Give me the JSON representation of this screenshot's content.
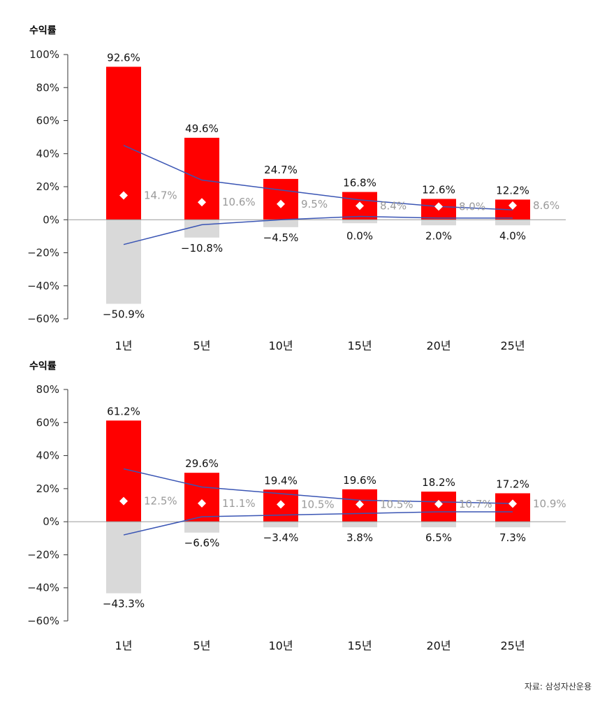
{
  "source": "자료: 삼성자산운용",
  "colors": {
    "max": "#ff0000",
    "min": "#d9d9d9",
    "avg_marker": "#ffffff",
    "line": "#3a55b4",
    "axis": "#333333",
    "avg_label": "#9a9a9a"
  },
  "chart_data": [
    {
      "type": "bar",
      "ylabel": "수익률",
      "yticks": [
        "100%",
        "80%",
        "60%",
        "40%",
        "20%",
        "0%",
        "−20%",
        "−40%",
        "−60%"
      ],
      "ylim": [
        -60,
        100
      ],
      "categories": [
        "1년",
        "5년",
        "10년",
        "15년",
        "20년",
        "25년"
      ],
      "series": [
        {
          "name": "max",
          "values": [
            92.6,
            49.6,
            24.7,
            16.8,
            12.6,
            12.2
          ],
          "labels": [
            "92.6%",
            "49.6%",
            "24.7%",
            "16.8%",
            "12.6%",
            "12.2%"
          ]
        },
        {
          "name": "min",
          "values": [
            -50.9,
            -10.8,
            -4.5,
            0.0,
            2.0,
            4.0
          ],
          "labels": [
            "−50.9%",
            "−10.8%",
            "−4.5%",
            "0.0%",
            "2.0%",
            "4.0%"
          ]
        },
        {
          "name": "avg",
          "values": [
            14.7,
            10.6,
            9.5,
            8.4,
            8.0,
            8.6
          ],
          "labels": [
            "14.7%",
            "10.6%",
            "9.5%",
            "8.4%",
            "8.0%",
            "8.6%"
          ]
        }
      ],
      "upper_line": [
        45,
        24,
        18,
        12,
        8,
        6
      ],
      "lower_line": [
        -15,
        -3,
        0,
        2,
        1,
        1
      ]
    },
    {
      "type": "bar",
      "ylabel": "수익률",
      "yticks": [
        "80%",
        "60%",
        "40%",
        "20%",
        "0%",
        "−20%",
        "−40%",
        "−60%"
      ],
      "ylim": [
        -60,
        80
      ],
      "categories": [
        "1년",
        "5년",
        "10년",
        "15년",
        "20년",
        "25년"
      ],
      "series": [
        {
          "name": "max",
          "values": [
            61.2,
            29.6,
            19.4,
            19.6,
            18.2,
            17.2
          ],
          "labels": [
            "61.2%",
            "29.6%",
            "19.4%",
            "19.6%",
            "18.2%",
            "17.2%"
          ]
        },
        {
          "name": "min",
          "values": [
            -43.3,
            -6.6,
            -3.4,
            3.8,
            6.5,
            7.3
          ],
          "labels": [
            "−43.3%",
            "−6.6%",
            "−3.4%",
            "3.8%",
            "6.5%",
            "7.3%"
          ]
        },
        {
          "name": "avg",
          "values": [
            12.5,
            11.1,
            10.5,
            10.5,
            10.7,
            10.9
          ],
          "labels": [
            "12.5%",
            "11.1%",
            "10.5%",
            "10.5%",
            "10.7%",
            "10.9%"
          ]
        }
      ],
      "upper_line": [
        32,
        21,
        17,
        13,
        12,
        11
      ],
      "lower_line": [
        -8,
        3,
        4,
        5,
        6,
        6
      ]
    }
  ]
}
